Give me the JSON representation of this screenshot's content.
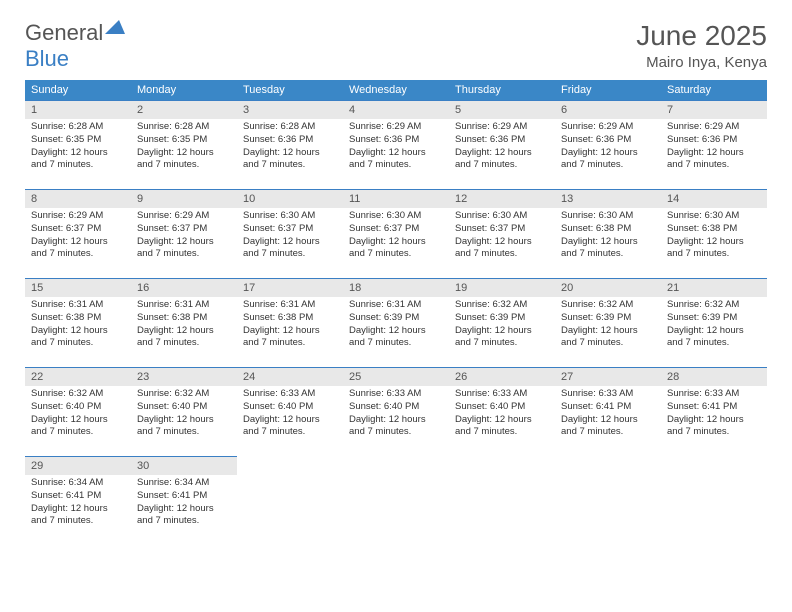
{
  "logo": {
    "text_gray": "General",
    "text_blue": "Blue"
  },
  "title": "June 2025",
  "location": "Mairo Inya, Kenya",
  "colors": {
    "header_bg": "#3a87c7",
    "header_text": "#ffffff",
    "daynum_bg": "#e8e8e8",
    "border": "#3a7fc4",
    "body_text": "#333333",
    "title_text": "#555555"
  },
  "day_headers": [
    "Sunday",
    "Monday",
    "Tuesday",
    "Wednesday",
    "Thursday",
    "Friday",
    "Saturday"
  ],
  "weeks": [
    [
      {
        "num": "1",
        "sunrise": "6:28 AM",
        "sunset": "6:35 PM",
        "daylight": "12 hours and 7 minutes."
      },
      {
        "num": "2",
        "sunrise": "6:28 AM",
        "sunset": "6:35 PM",
        "daylight": "12 hours and 7 minutes."
      },
      {
        "num": "3",
        "sunrise": "6:28 AM",
        "sunset": "6:36 PM",
        "daylight": "12 hours and 7 minutes."
      },
      {
        "num": "4",
        "sunrise": "6:29 AM",
        "sunset": "6:36 PM",
        "daylight": "12 hours and 7 minutes."
      },
      {
        "num": "5",
        "sunrise": "6:29 AM",
        "sunset": "6:36 PM",
        "daylight": "12 hours and 7 minutes."
      },
      {
        "num": "6",
        "sunrise": "6:29 AM",
        "sunset": "6:36 PM",
        "daylight": "12 hours and 7 minutes."
      },
      {
        "num": "7",
        "sunrise": "6:29 AM",
        "sunset": "6:36 PM",
        "daylight": "12 hours and 7 minutes."
      }
    ],
    [
      {
        "num": "8",
        "sunrise": "6:29 AM",
        "sunset": "6:37 PM",
        "daylight": "12 hours and 7 minutes."
      },
      {
        "num": "9",
        "sunrise": "6:29 AM",
        "sunset": "6:37 PM",
        "daylight": "12 hours and 7 minutes."
      },
      {
        "num": "10",
        "sunrise": "6:30 AM",
        "sunset": "6:37 PM",
        "daylight": "12 hours and 7 minutes."
      },
      {
        "num": "11",
        "sunrise": "6:30 AM",
        "sunset": "6:37 PM",
        "daylight": "12 hours and 7 minutes."
      },
      {
        "num": "12",
        "sunrise": "6:30 AM",
        "sunset": "6:37 PM",
        "daylight": "12 hours and 7 minutes."
      },
      {
        "num": "13",
        "sunrise": "6:30 AM",
        "sunset": "6:38 PM",
        "daylight": "12 hours and 7 minutes."
      },
      {
        "num": "14",
        "sunrise": "6:30 AM",
        "sunset": "6:38 PM",
        "daylight": "12 hours and 7 minutes."
      }
    ],
    [
      {
        "num": "15",
        "sunrise": "6:31 AM",
        "sunset": "6:38 PM",
        "daylight": "12 hours and 7 minutes."
      },
      {
        "num": "16",
        "sunrise": "6:31 AM",
        "sunset": "6:38 PM",
        "daylight": "12 hours and 7 minutes."
      },
      {
        "num": "17",
        "sunrise": "6:31 AM",
        "sunset": "6:38 PM",
        "daylight": "12 hours and 7 minutes."
      },
      {
        "num": "18",
        "sunrise": "6:31 AM",
        "sunset": "6:39 PM",
        "daylight": "12 hours and 7 minutes."
      },
      {
        "num": "19",
        "sunrise": "6:32 AM",
        "sunset": "6:39 PM",
        "daylight": "12 hours and 7 minutes."
      },
      {
        "num": "20",
        "sunrise": "6:32 AM",
        "sunset": "6:39 PM",
        "daylight": "12 hours and 7 minutes."
      },
      {
        "num": "21",
        "sunrise": "6:32 AM",
        "sunset": "6:39 PM",
        "daylight": "12 hours and 7 minutes."
      }
    ],
    [
      {
        "num": "22",
        "sunrise": "6:32 AM",
        "sunset": "6:40 PM",
        "daylight": "12 hours and 7 minutes."
      },
      {
        "num": "23",
        "sunrise": "6:32 AM",
        "sunset": "6:40 PM",
        "daylight": "12 hours and 7 minutes."
      },
      {
        "num": "24",
        "sunrise": "6:33 AM",
        "sunset": "6:40 PM",
        "daylight": "12 hours and 7 minutes."
      },
      {
        "num": "25",
        "sunrise": "6:33 AM",
        "sunset": "6:40 PM",
        "daylight": "12 hours and 7 minutes."
      },
      {
        "num": "26",
        "sunrise": "6:33 AM",
        "sunset": "6:40 PM",
        "daylight": "12 hours and 7 minutes."
      },
      {
        "num": "27",
        "sunrise": "6:33 AM",
        "sunset": "6:41 PM",
        "daylight": "12 hours and 7 minutes."
      },
      {
        "num": "28",
        "sunrise": "6:33 AM",
        "sunset": "6:41 PM",
        "daylight": "12 hours and 7 minutes."
      }
    ],
    [
      {
        "num": "29",
        "sunrise": "6:34 AM",
        "sunset": "6:41 PM",
        "daylight": "12 hours and 7 minutes."
      },
      {
        "num": "30",
        "sunrise": "6:34 AM",
        "sunset": "6:41 PM",
        "daylight": "12 hours and 7 minutes."
      },
      null,
      null,
      null,
      null,
      null
    ]
  ],
  "labels": {
    "sunrise": "Sunrise:",
    "sunset": "Sunset:",
    "daylight": "Daylight:"
  }
}
